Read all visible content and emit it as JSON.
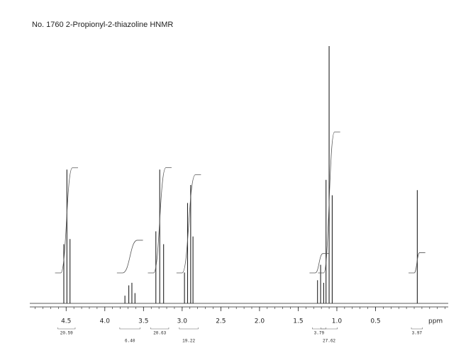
{
  "chart_data": {
    "type": "nmr",
    "title": "No. 1760 2-Propionyl-2-thiazoline HNMR",
    "x_label": "ppm",
    "xlim": [
      4.97,
      -0.44
    ],
    "xticks": [
      4.5,
      {
        "value": 4,
        "label": "4.0"
      },
      3.5,
      {
        "value": 3,
        "label": "3.0"
      },
      2.5,
      {
        "value": 2,
        "label": "2.0"
      },
      1.5,
      {
        "value": 1,
        "label": "1.0"
      },
      0.5
    ],
    "ylim": [
      0,
      100
    ],
    "color": "#222222",
    "peaks": {
      "ppm": [
        4.53,
        4.49,
        4.45,
        3.74,
        3.69,
        3.65,
        3.61,
        3.34,
        3.29,
        3.24,
        2.97,
        2.93,
        2.89,
        2.86,
        1.25,
        1.21,
        1.17,
        1.14,
        1.1,
        1.06,
        -0.04
      ],
      "intensity": [
        23,
        52,
        25,
        3,
        7,
        8,
        4,
        28,
        52,
        23,
        12,
        39,
        46,
        26,
        9,
        15,
        8,
        48,
        100,
        42,
        44
      ]
    },
    "integrals": {
      "regions": [
        [
          4.57,
          4.42
        ],
        [
          3.77,
          3.58
        ],
        [
          3.37,
          3.21
        ],
        [
          3.0,
          2.83
        ],
        [
          1.28,
          1.18
        ],
        [
          1.17,
          1.03
        ],
        [
          0.0,
          -0.07
        ]
      ],
      "values": [
        20.59,
        6.4,
        20.63,
        19.22,
        3.79,
        27.62,
        3.97
      ],
      "value_labels": [
        "20.59",
        "6.40",
        "20.63",
        "19.22",
        "3.79",
        "27.62",
        "3.97"
      ]
    }
  }
}
